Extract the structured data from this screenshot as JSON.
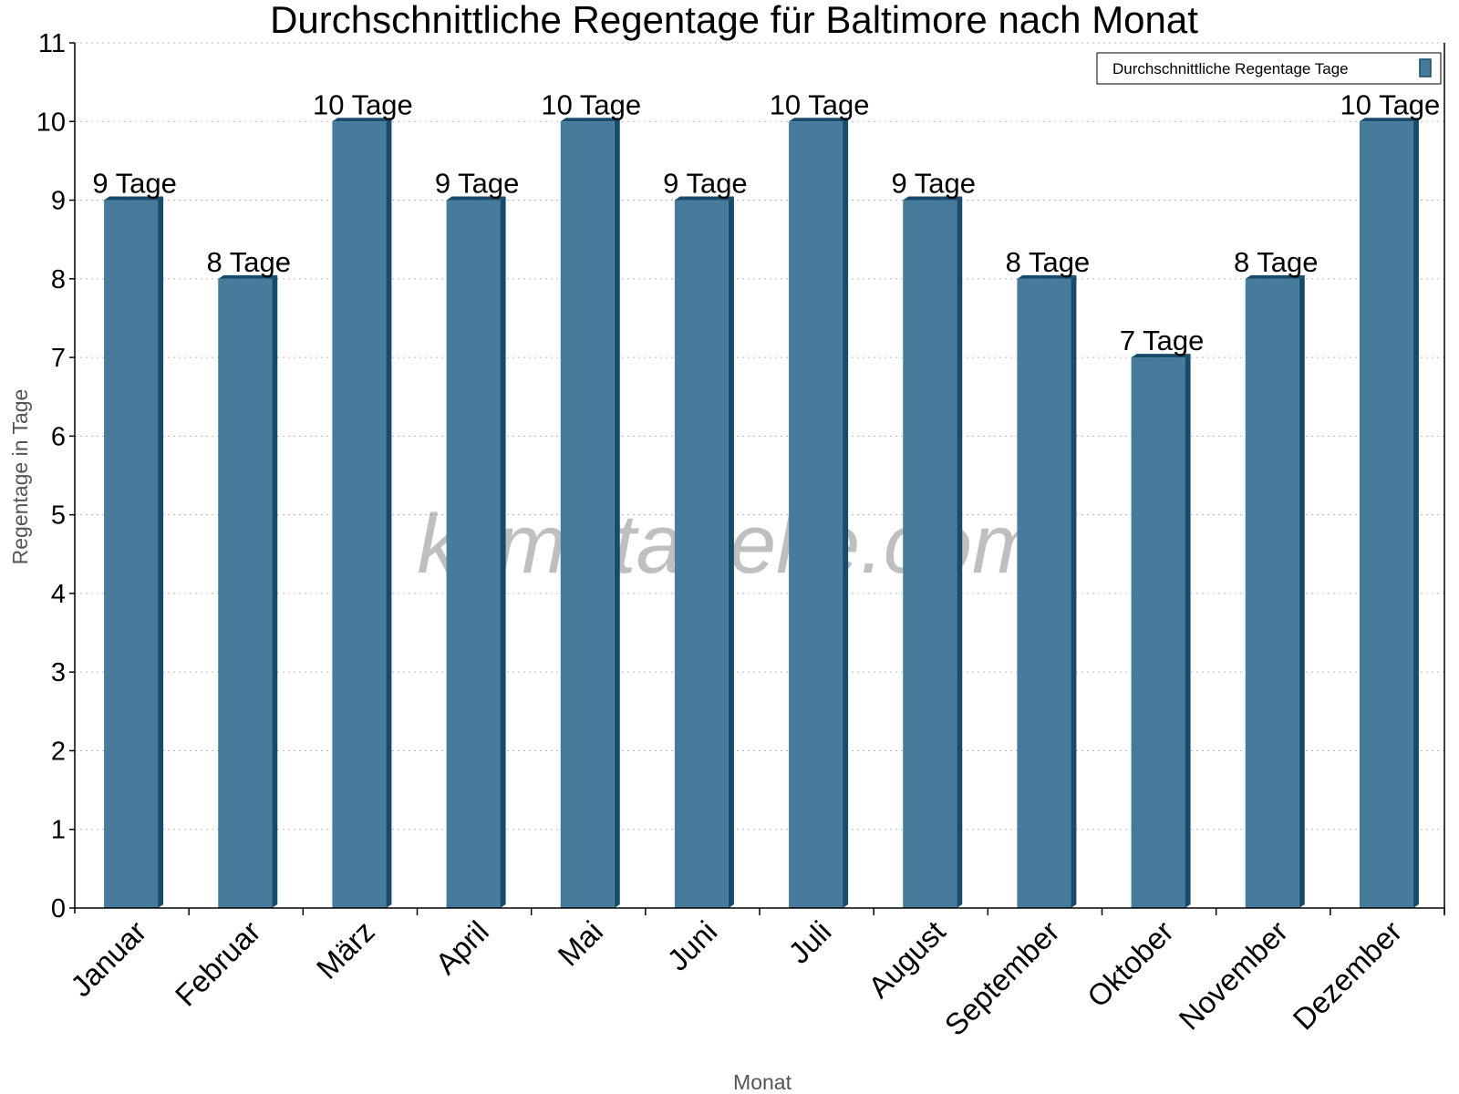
{
  "chart_data": {
    "type": "bar",
    "title": "Durchschnittliche Regentage für Baltimore nach Monat",
    "xlabel": "Monat",
    "ylabel": "Regentage in Tage",
    "ylim": [
      0,
      11
    ],
    "yticks": [
      "0",
      "1",
      "2",
      "3",
      "4",
      "5",
      "6",
      "7",
      "8",
      "9",
      "10",
      "11"
    ],
    "grid": true,
    "legend_position": "top-right",
    "categories": [
      "Januar",
      "Februar",
      "März",
      "April",
      "Mai",
      "Juni",
      "Juli",
      "August",
      "September",
      "Oktober",
      "November",
      "Dezember"
    ],
    "series": [
      {
        "name": "Durchschnittliche Regentage Tage",
        "values": [
          9,
          8,
          10,
          9,
          10,
          9,
          10,
          9,
          8,
          7,
          8,
          10
        ],
        "color": "#477b9c",
        "side_color": "#174a6b"
      }
    ],
    "data_labels": [
      "9 Tage",
      "8 Tage",
      "10 Tage",
      "9 Tage",
      "10 Tage",
      "9 Tage",
      "10 Tage",
      "9 Tage",
      "8 Tage",
      "7 Tage",
      "8 Tage",
      "10 Tage"
    ]
  },
  "watermark": "klimatabelle.com"
}
